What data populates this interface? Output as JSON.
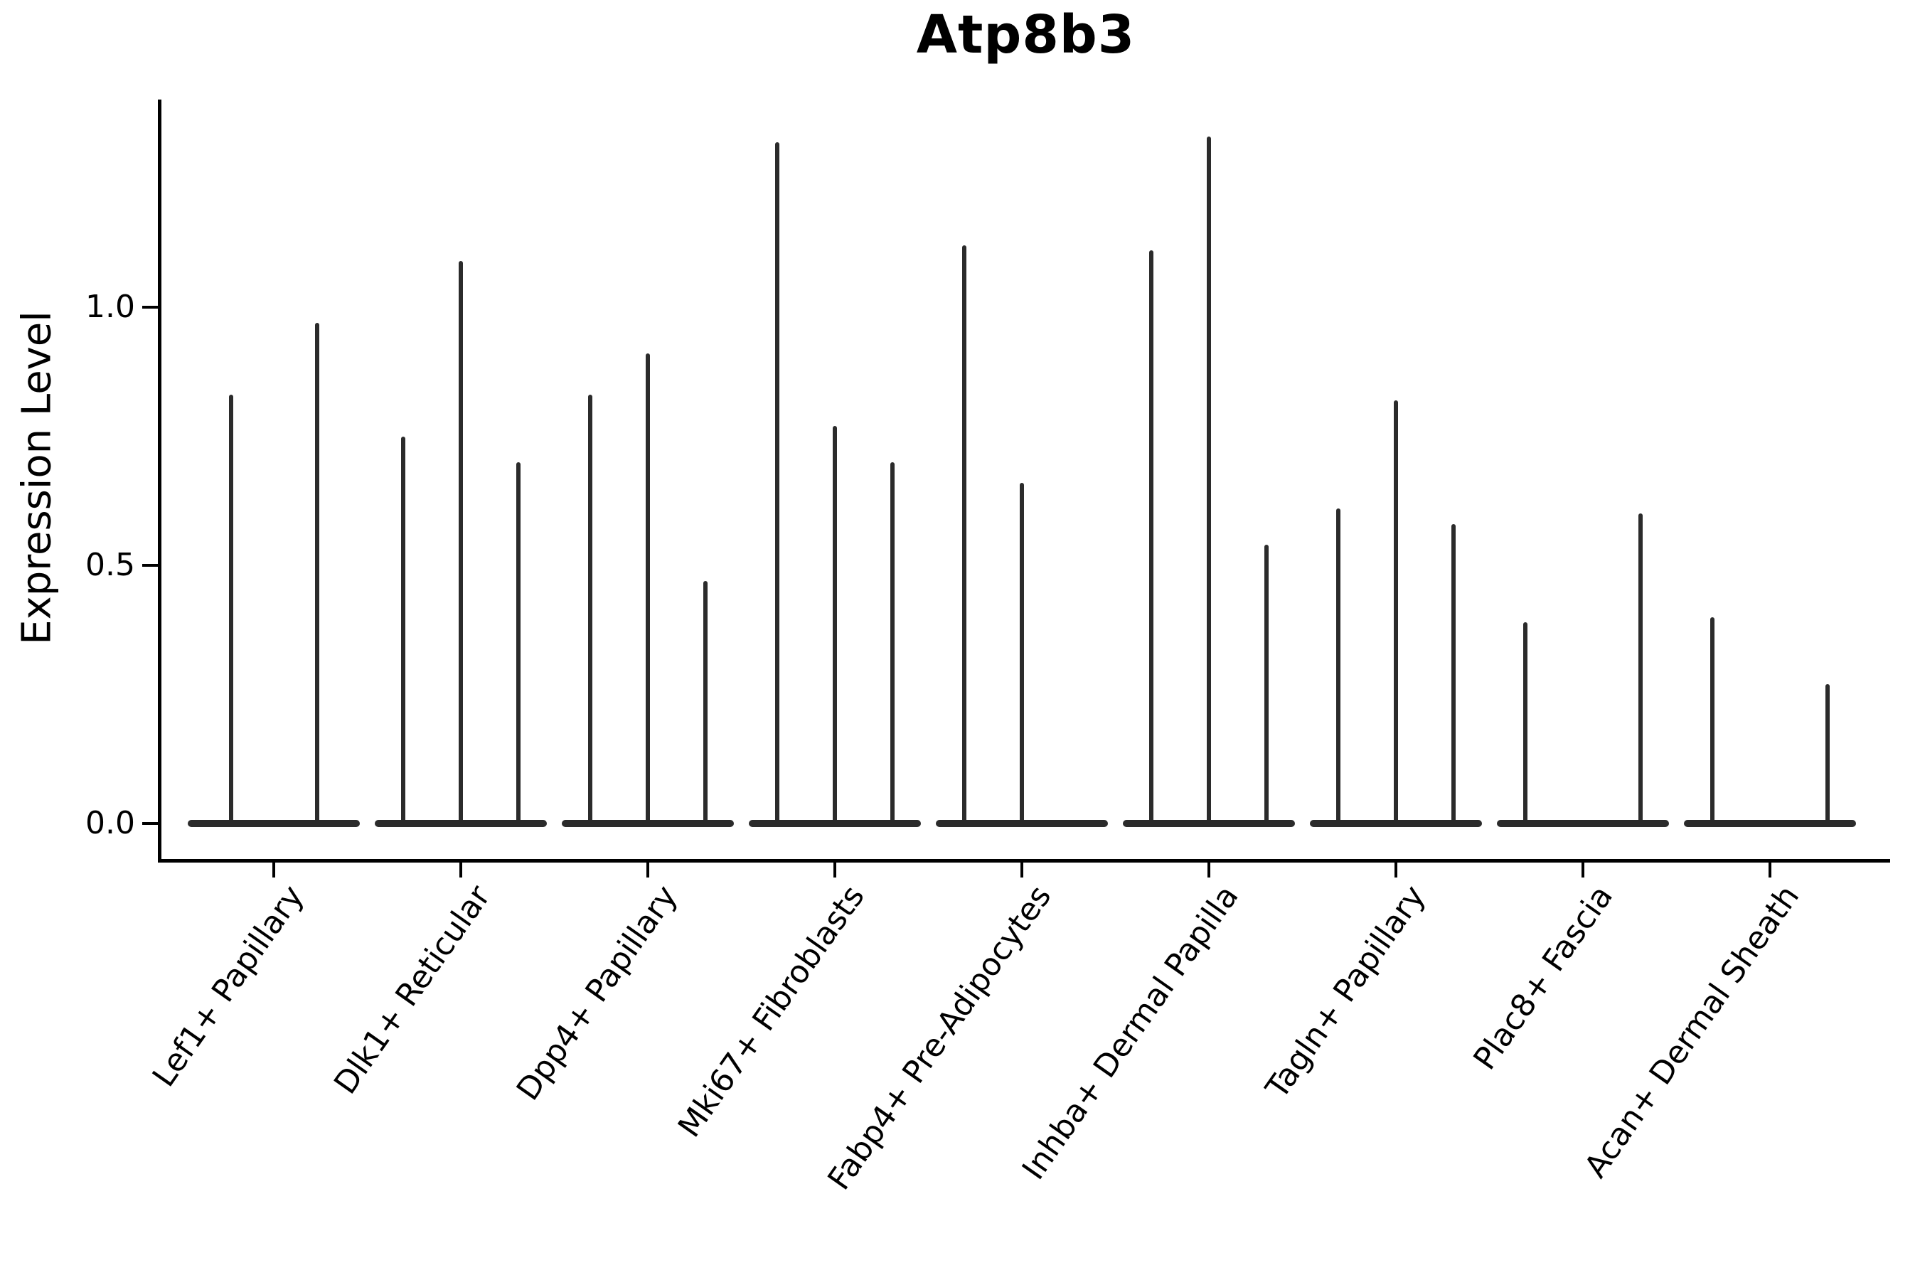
{
  "colors": {
    "violin": "#2b2b2b",
    "axis": "#000000",
    "text": "#000000",
    "background": "#ffffff"
  },
  "chart_data": {
    "type": "violin",
    "title": "Atp8b3",
    "xlabel": "",
    "ylabel": "Expression Level",
    "legend": null,
    "grid": false,
    "ylim": [
      -0.07,
      1.4
    ],
    "yticks": [
      {
        "value": 0.0,
        "label": "0.0"
      },
      {
        "value": 0.5,
        "label": "0.5"
      },
      {
        "value": 1.0,
        "label": "1.0"
      }
    ],
    "categories": [
      "Lef1+ Papillary",
      "Dlk1+ Reticular",
      "Dpp4+ Papillary",
      "Mki67+ Fibroblasts",
      "Fabp4+ Pre-Adipocytes",
      "Inhba+ Dermal Papilla",
      "Tagln+ Papillary",
      "Plac8+ Fascia",
      "Acan+ Dermal Sheath"
    ],
    "violin_shape_note": "Each violin is bottom-heavy: wide flat mass at expression 0 with a single thin tail rising to its maximum; null means the violin is flat at 0 with no tail.",
    "groups": [
      {
        "label": "Lef1+ Papillary",
        "violin_maxima": [
          0.83,
          0.97
        ]
      },
      {
        "label": "Dlk1+ Reticular",
        "violin_maxima": [
          0.75,
          1.09,
          0.7
        ]
      },
      {
        "label": "Dpp4+ Papillary",
        "violin_maxima": [
          0.83,
          0.91,
          0.47
        ]
      },
      {
        "label": "Mki67+ Fibroblasts",
        "violin_maxima": [
          1.32,
          0.77,
          0.7
        ]
      },
      {
        "label": "Fabp4+ Pre-Adipocytes",
        "violin_maxima": [
          1.12,
          0.66,
          null
        ]
      },
      {
        "label": "Inhba+ Dermal Papilla",
        "violin_maxima": [
          1.11,
          1.33,
          0.54
        ]
      },
      {
        "label": "Tagln+ Papillary",
        "violin_maxima": [
          0.61,
          0.82,
          0.58
        ]
      },
      {
        "label": "Plac8+ Fascia",
        "violin_maxima": [
          0.39,
          null,
          0.6
        ]
      },
      {
        "label": "Acan+ Dermal Sheath",
        "violin_maxima": [
          0.4,
          null,
          0.27
        ]
      }
    ]
  }
}
